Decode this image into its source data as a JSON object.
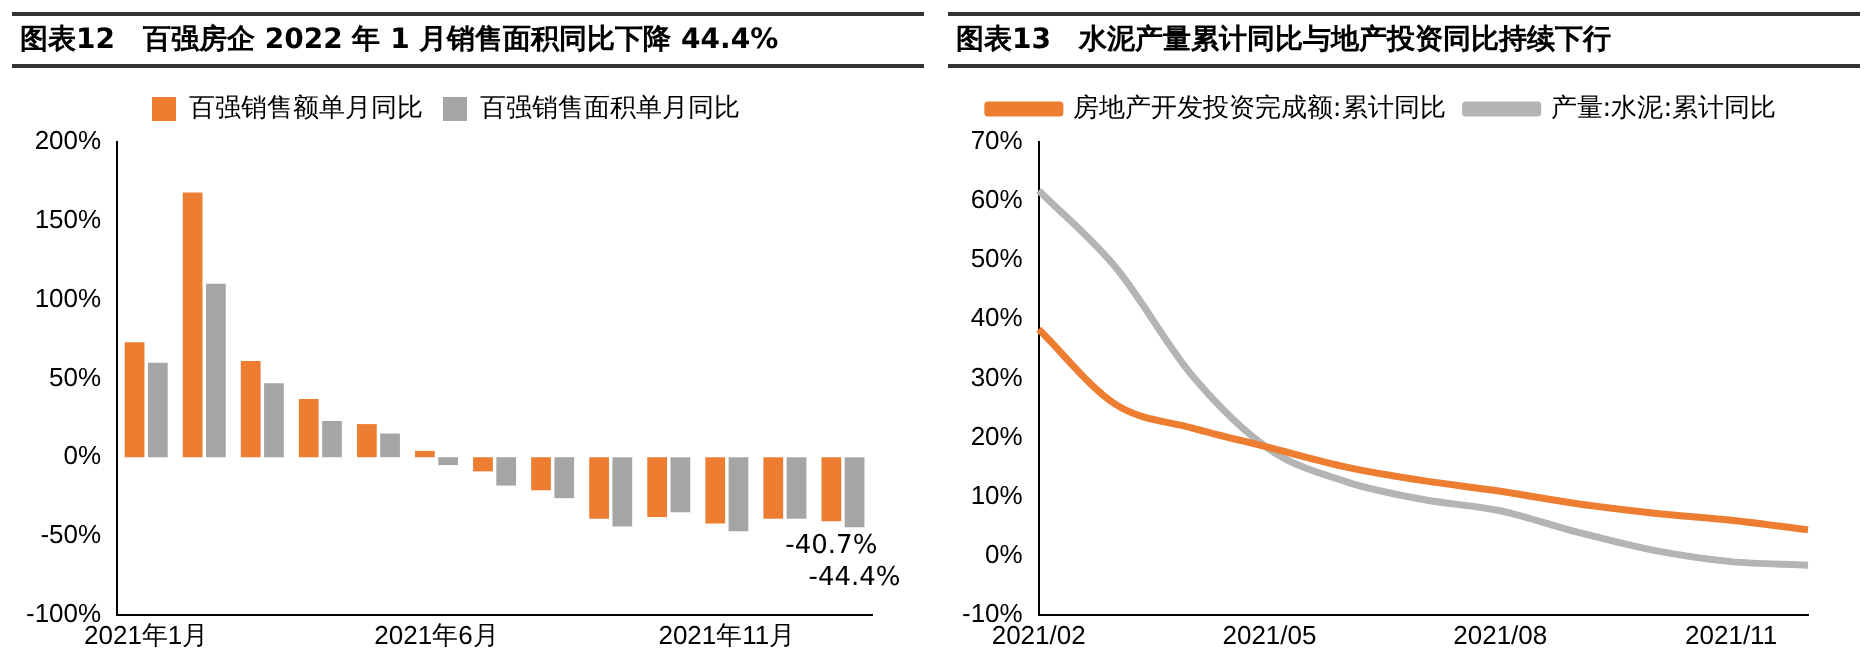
{
  "chart_data": [
    {
      "type": "bar",
      "title": "图表12　百强房企 2022 年 1 月销售面积同比下降 44.4%",
      "categories": [
        "2021年1月",
        null,
        null,
        null,
        null,
        "2021年6月",
        null,
        null,
        null,
        null,
        "2021年11月",
        null,
        null
      ],
      "ylim": [
        -100,
        200
      ],
      "yticks": [
        {
          "value": -100,
          "label": "-100%"
        },
        {
          "value": -50,
          "label": "-50%"
        },
        {
          "value": 0,
          "label": "0%"
        },
        {
          "value": 50,
          "label": "50%"
        },
        {
          "value": 100,
          "label": "100%"
        },
        {
          "value": 150,
          "label": "150%"
        },
        {
          "value": 200,
          "label": "200%"
        }
      ],
      "legend": "top",
      "series": [
        {
          "name": "百强销售额单月同比",
          "color": "#ed7d31",
          "values": [
            73,
            168,
            61,
            37,
            21,
            4,
            -9,
            -21,
            -39,
            -38,
            -42,
            -39,
            -40.7
          ],
          "value_labels": [
            null,
            null,
            null,
            null,
            null,
            null,
            null,
            null,
            null,
            null,
            null,
            null,
            "-40.7%"
          ]
        },
        {
          "name": "百强销售面积单月同比",
          "color": "#a5a5a5",
          "values": [
            60,
            110,
            47,
            23,
            15,
            -5,
            -18,
            -26,
            -44,
            -35,
            -47,
            -39,
            -44.4
          ],
          "value_labels": [
            null,
            null,
            null,
            null,
            null,
            null,
            null,
            null,
            null,
            null,
            null,
            null,
            "-44.4%"
          ]
        }
      ]
    },
    {
      "type": "line",
      "title": "图表13　水泥产量累计同比与地产投资同比持续下行",
      "categories": [
        "2021/02",
        null,
        null,
        "2021/05",
        null,
        null,
        "2021/08",
        null,
        null,
        "2021/11",
        null
      ],
      "ylim": [
        -10,
        70
      ],
      "yticks": [
        {
          "value": -10,
          "label": "-10%"
        },
        {
          "value": 0,
          "label": "0%"
        },
        {
          "value": 10,
          "label": "10%"
        },
        {
          "value": 20,
          "label": "20%"
        },
        {
          "value": 30,
          "label": "30%"
        },
        {
          "value": 40,
          "label": "40%"
        },
        {
          "value": 50,
          "label": "50%"
        },
        {
          "value": 60,
          "label": "60%"
        },
        {
          "value": 70,
          "label": "70%"
        }
      ],
      "legend": "top",
      "series": [
        {
          "name": "房地产开发投资完成额:累计同比",
          "color": "#ed7d31",
          "values": [
            38.3,
            25.6,
            21.6,
            18.3,
            15.0,
            12.7,
            10.9,
            8.8,
            7.2,
            6.0,
            4.4
          ]
        },
        {
          "name": "产量:水泥:累计同比",
          "color": "#b4b4b4",
          "values": [
            61.8,
            48.8,
            30.4,
            18.0,
            12.5,
            9.5,
            7.6,
            4.0,
            0.9,
            -1.0,
            -1.6
          ]
        }
      ]
    }
  ]
}
